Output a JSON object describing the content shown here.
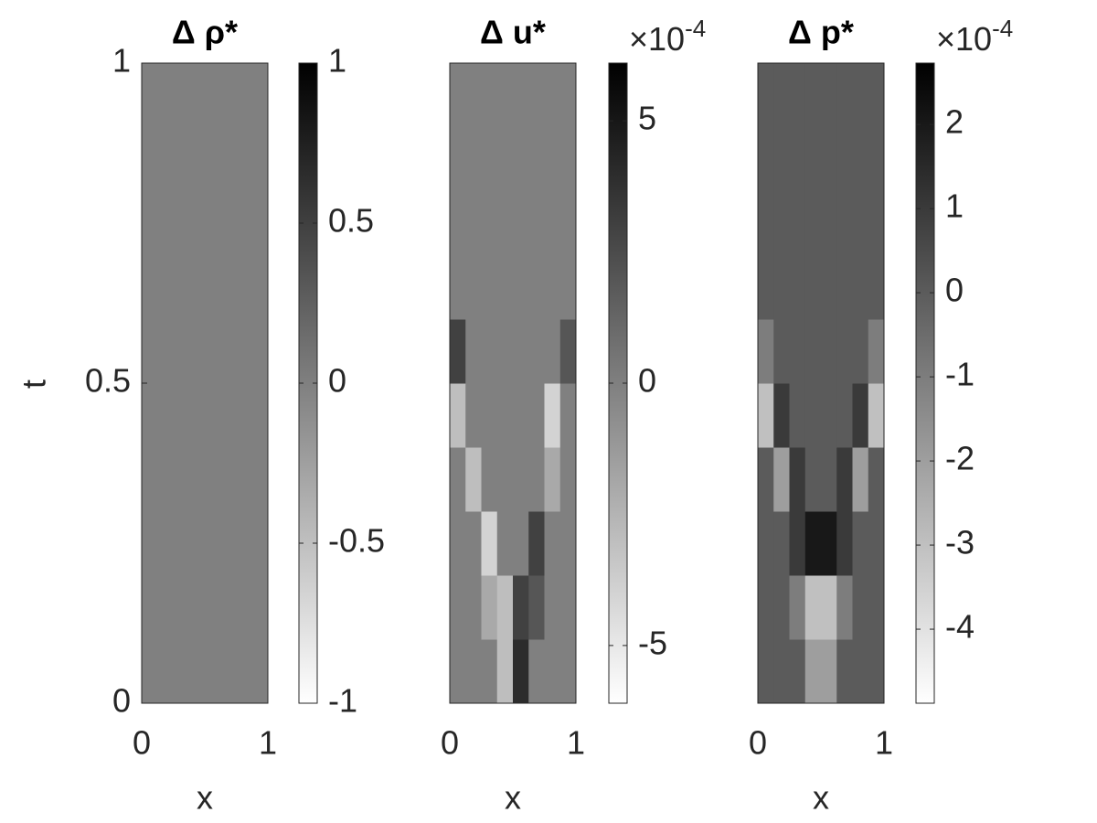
{
  "chart_data": [
    {
      "type": "heatmap",
      "title": "Δ ρ*",
      "xlabel": "x",
      "ylabel": "t",
      "xlim": [
        0,
        1
      ],
      "xticks": [
        0,
        1
      ],
      "ylim": [
        0,
        1
      ],
      "yticks": [
        0,
        0.5,
        1
      ],
      "colormap": "gray",
      "reversed": true,
      "clim": [
        -1,
        1
      ],
      "cticks": [
        -1,
        -0.5,
        0,
        0.5,
        1
      ],
      "values": [
        [
          0
        ]
      ]
    },
    {
      "type": "heatmap",
      "title": "Δ u*",
      "xlabel": "x",
      "xlim": [
        0,
        1
      ],
      "xticks": [
        0,
        1
      ],
      "ylim": [
        0,
        1
      ],
      "colormap": "gray",
      "reversed": true,
      "clim": [
        -6.1,
        6.1
      ],
      "cticks": [
        -5,
        0,
        5
      ],
      "multiplier": "×10",
      "exponent": "-4",
      "values": [
        [
          0,
          0,
          0,
          -3,
          4,
          0,
          0,
          0
        ],
        [
          0,
          0,
          -2,
          -3,
          3,
          2,
          0,
          0
        ],
        [
          0,
          0,
          -4,
          0,
          0,
          3,
          0,
          0
        ],
        [
          0,
          -3,
          0,
          0,
          0,
          0,
          -2,
          0
        ],
        [
          -3,
          0,
          0,
          0,
          0,
          0,
          -4,
          0
        ],
        [
          3,
          0,
          0,
          0,
          0,
          0,
          0,
          2
        ],
        [
          0,
          0,
          0,
          0,
          0,
          0,
          0,
          0
        ],
        [
          0,
          0,
          0,
          0,
          0,
          0,
          0,
          0
        ],
        [
          0,
          0,
          0,
          0,
          0,
          0,
          0,
          0
        ],
        [
          0,
          0,
          0,
          0,
          0,
          0,
          0,
          0
        ]
      ]
    },
    {
      "type": "heatmap",
      "title": "Δ p*",
      "xlabel": "x",
      "xlim": [
        0,
        1
      ],
      "xticks": [
        0,
        1
      ],
      "ylim": [
        0,
        1
      ],
      "colormap": "gray",
      "reversed": true,
      "clim": [
        -4.88,
        2.73
      ],
      "cticks": [
        -4,
        -3,
        -2,
        -1,
        0,
        1,
        2
      ],
      "multiplier": "×10",
      "exponent": "-4",
      "values": [
        [
          0,
          0,
          0,
          -2,
          -2,
          0,
          0,
          0
        ],
        [
          0,
          0,
          -1,
          -3,
          -3,
          -1,
          0,
          0
        ],
        [
          0,
          0,
          1,
          2,
          2,
          1,
          0,
          0
        ],
        [
          0,
          -2,
          1,
          0,
          0,
          1,
          -2,
          0
        ],
        [
          -3,
          1,
          0,
          0,
          0,
          0,
          1,
          -3
        ],
        [
          -1,
          0,
          0,
          0,
          0,
          0,
          0,
          -1
        ],
        [
          0,
          0,
          0,
          0,
          0,
          0,
          0,
          0
        ],
        [
          0,
          0,
          0,
          0,
          0,
          0,
          0,
          0
        ],
        [
          0,
          0,
          0,
          0,
          0,
          0,
          0,
          0
        ],
        [
          0,
          0,
          0,
          0,
          0,
          0,
          0,
          0
        ]
      ]
    }
  ]
}
